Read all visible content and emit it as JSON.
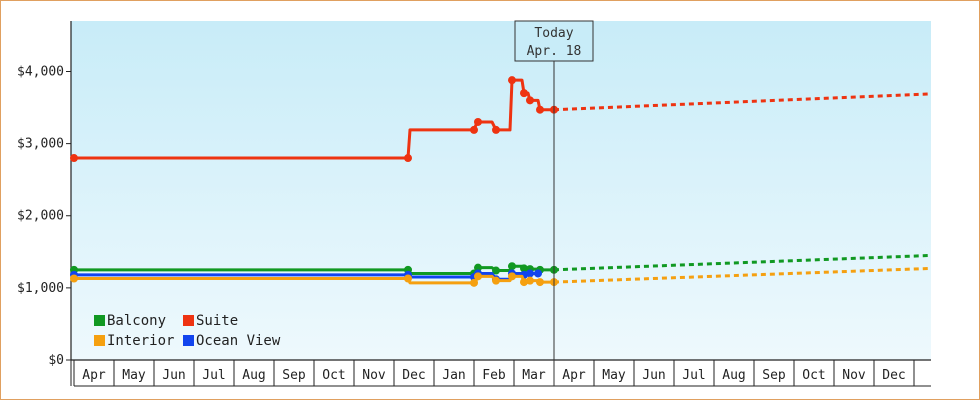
{
  "chart_data": {
    "type": "line",
    "title": "",
    "xlabel": "",
    "ylabel": "",
    "ylim": [
      0,
      4700
    ],
    "grid": false,
    "legend_position": "bottom-left",
    "y_ticks": [
      {
        "value": 0,
        "label": "$0"
      },
      {
        "value": 1000,
        "label": "$1,000"
      },
      {
        "value": 2000,
        "label": "$2,000"
      },
      {
        "value": 3000,
        "label": "$3,000"
      },
      {
        "value": 4000,
        "label": "$4,000"
      }
    ],
    "x_months": [
      "Apr",
      "May",
      "Jun",
      "Jul",
      "Aug",
      "Sep",
      "Oct",
      "Nov",
      "Dec",
      "Jan",
      "Feb",
      "Mar",
      "Apr",
      "May",
      "Jun",
      "Jul",
      "Aug",
      "Sep",
      "Oct",
      "Nov",
      "Dec"
    ],
    "today": {
      "line1": "Today",
      "line2": "Apr. 18",
      "month_pos": 12.0
    },
    "colors": {
      "Balcony": "#119922",
      "Suite": "#ee3311",
      "Interior": "#f5a010",
      "Ocean View": "#1144ee"
    },
    "series": [
      {
        "name": "Suite",
        "color": "#ee3311",
        "points": [
          [
            0.0,
            2800
          ],
          [
            8.35,
            2800
          ],
          [
            8.4,
            3190
          ],
          [
            10.0,
            3190
          ],
          [
            10.05,
            3260
          ],
          [
            10.1,
            3300
          ],
          [
            10.45,
            3300
          ],
          [
            10.55,
            3190
          ],
          [
            10.9,
            3190
          ],
          [
            10.95,
            3880
          ],
          [
            11.2,
            3880
          ],
          [
            11.25,
            3700
          ],
          [
            11.35,
            3700
          ],
          [
            11.4,
            3600
          ],
          [
            11.6,
            3600
          ],
          [
            11.65,
            3470
          ],
          [
            12.0,
            3470
          ]
        ],
        "forecast": [
          [
            12.0,
            3470
          ],
          [
            21.5,
            3690
          ]
        ]
      },
      {
        "name": "Balcony",
        "color": "#119922",
        "points": [
          [
            0.0,
            1250
          ],
          [
            8.35,
            1250
          ],
          [
            8.4,
            1200
          ],
          [
            10.0,
            1200
          ],
          [
            10.05,
            1240
          ],
          [
            10.1,
            1280
          ],
          [
            10.45,
            1280
          ],
          [
            10.55,
            1240
          ],
          [
            10.9,
            1240
          ],
          [
            10.95,
            1300
          ],
          [
            11.2,
            1300
          ],
          [
            11.25,
            1270
          ],
          [
            11.35,
            1270
          ],
          [
            11.4,
            1260
          ],
          [
            11.6,
            1260
          ],
          [
            11.65,
            1250
          ],
          [
            12.0,
            1250
          ]
        ],
        "forecast": [
          [
            12.0,
            1250
          ],
          [
            21.5,
            1450
          ]
        ]
      },
      {
        "name": "Ocean View",
        "color": "#1144ee",
        "points": [
          [
            0.0,
            1180
          ],
          [
            8.35,
            1180
          ],
          [
            8.4,
            1150
          ],
          [
            10.0,
            1150
          ],
          [
            10.05,
            1160
          ],
          [
            10.1,
            1200
          ],
          [
            10.45,
            1200
          ],
          [
            10.55,
            1120
          ],
          [
            10.9,
            1120
          ],
          [
            10.95,
            1200
          ],
          [
            11.2,
            1200
          ],
          [
            11.25,
            1180
          ],
          [
            11.35,
            1180
          ],
          [
            11.4,
            1200
          ],
          [
            11.6,
            1200
          ]
        ],
        "forecast": []
      },
      {
        "name": "Interior",
        "color": "#f5a010",
        "points": [
          [
            0.0,
            1130
          ],
          [
            8.35,
            1130
          ],
          [
            8.4,
            1070
          ],
          [
            10.0,
            1070
          ],
          [
            10.05,
            1100
          ],
          [
            10.1,
            1160
          ],
          [
            10.45,
            1160
          ],
          [
            10.55,
            1100
          ],
          [
            10.9,
            1100
          ],
          [
            10.95,
            1160
          ],
          [
            11.2,
            1160
          ],
          [
            11.25,
            1080
          ],
          [
            11.35,
            1080
          ],
          [
            11.4,
            1100
          ],
          [
            11.6,
            1100
          ],
          [
            11.65,
            1080
          ],
          [
            12.0,
            1080
          ]
        ],
        "forecast": [
          [
            12.0,
            1080
          ],
          [
            21.5,
            1270
          ]
        ]
      }
    ],
    "legend": [
      {
        "name": "Balcony",
        "color": "#119922"
      },
      {
        "name": "Suite",
        "color": "#ee3311"
      },
      {
        "name": "Interior",
        "color": "#f5a010"
      },
      {
        "name": "Ocean View",
        "color": "#1144ee"
      }
    ]
  }
}
